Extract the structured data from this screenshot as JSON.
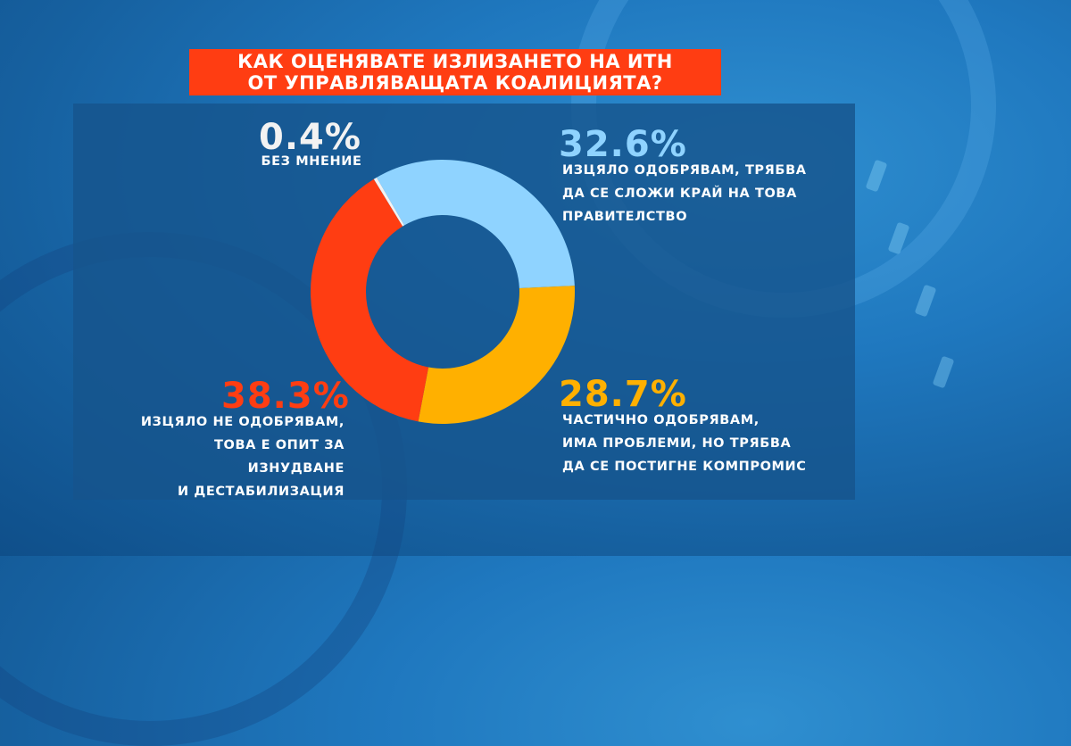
{
  "title": {
    "line1": "КАК ОЦЕНЯВАТЕ ИЗЛИЗАНЕТО НА ИТН",
    "line2": "ОТ УПРАВЛЯВАЩАТА КОАЛИЦИЯТА?"
  },
  "colors": {
    "title_bg": "#ff3d12",
    "panel_bg": "#16548c",
    "approve_full": "#8fd3ff",
    "approve_partial": "#ffb000",
    "disapprove": "#ff3d12",
    "no_opinion": "#f2f2f2"
  },
  "labels": {
    "no_opinion": {
      "pct": "0.4%",
      "text": [
        "БЕЗ МНЕНИЕ"
      ]
    },
    "approve_full": {
      "pct": "32.6%",
      "text": [
        "ИЗЦЯЛО ОДОБРЯВАМ, ТРЯБВА",
        "ДА СЕ СЛОЖИ КРАЙ НА ТОВА",
        "ПРАВИТЕЛСТВО"
      ]
    },
    "approve_partial": {
      "pct": "28.7%",
      "text": [
        "ЧАСТИЧНО ОДОБРЯВАМ,",
        "ИМА ПРОБЛЕМИ, НО ТРЯБВА",
        "ДА СЕ ПОСТИГНЕ КОМПРОМИС"
      ]
    },
    "disapprove": {
      "pct": "38.3%",
      "text": [
        "ИЗЦЯЛО НЕ ОДОБРЯВАМ,",
        "ТОВА Е ОПИТ ЗА ИЗНУДВАНЕ",
        "И ДЕСТАБИЛИЗАЦИЯ"
      ]
    }
  },
  "chart_data": {
    "type": "pie",
    "subtype": "donut",
    "title": "КАК ОЦЕНЯВАТЕ ИЗЛИЗАНЕТО НА ИТН ОТ УПРАВЛЯВАЩАТА КОАЛИЦИЯТА?",
    "categories": [
      "ИЗЦЯЛО ОДОБРЯВАМ, ТРЯБВА ДА СЕ СЛОЖИ КРАЙ НА ТОВА ПРАВИТЕЛСТВО",
      "ЧАСТИЧНО ОДОБРЯВАМ, ИМА ПРОБЛЕМИ, НО ТРЯБВА ДА СЕ ПОСТИГНЕ КОМПРОМИС",
      "ИЗЦЯЛО НЕ ОДОБРЯВАМ, ТОВА Е ОПИТ ЗА ИЗНУДВАНЕ И ДЕСТАБИЛИЗАЦИЯ",
      "БЕЗ МНЕНИЕ"
    ],
    "values": [
      32.6,
      28.7,
      38.3,
      0.4
    ],
    "unit": "%",
    "colors": [
      "#8fd3ff",
      "#ffb000",
      "#ff3d12",
      "#f2f2f2"
    ],
    "start_angle_deg": -30,
    "direction": "clockwise"
  }
}
